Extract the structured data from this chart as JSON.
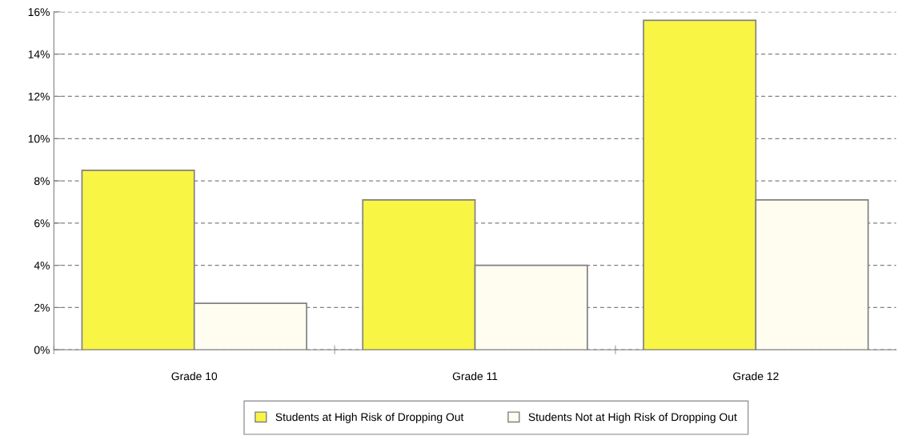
{
  "chart_data": {
    "type": "bar",
    "categories": [
      "Grade 10",
      "Grade 11",
      "Grade 12"
    ],
    "series": [
      {
        "name": "Students at High Risk of Dropping Out",
        "color": "#f9f545",
        "values": [
          8.5,
          7.1,
          15.6
        ]
      },
      {
        "name": "Students Not at High Risk of Dropping Out",
        "color": "#fffdf0",
        "values": [
          2.2,
          4.0,
          7.1
        ]
      }
    ],
    "ylim": [
      0,
      16
    ],
    "yticks": [
      {
        "value": 0,
        "label": "0%"
      },
      {
        "value": 2,
        "label": "2%"
      },
      {
        "value": 4,
        "label": "4%"
      },
      {
        "value": 6,
        "label": "6%"
      },
      {
        "value": 8,
        "label": "8%"
      },
      {
        "value": 10,
        "label": "10%"
      },
      {
        "value": 12,
        "label": "12%"
      },
      {
        "value": 14,
        "label": "14%"
      },
      {
        "value": 16,
        "label": "16%"
      }
    ],
    "grid": "y",
    "legend": "bottom"
  }
}
